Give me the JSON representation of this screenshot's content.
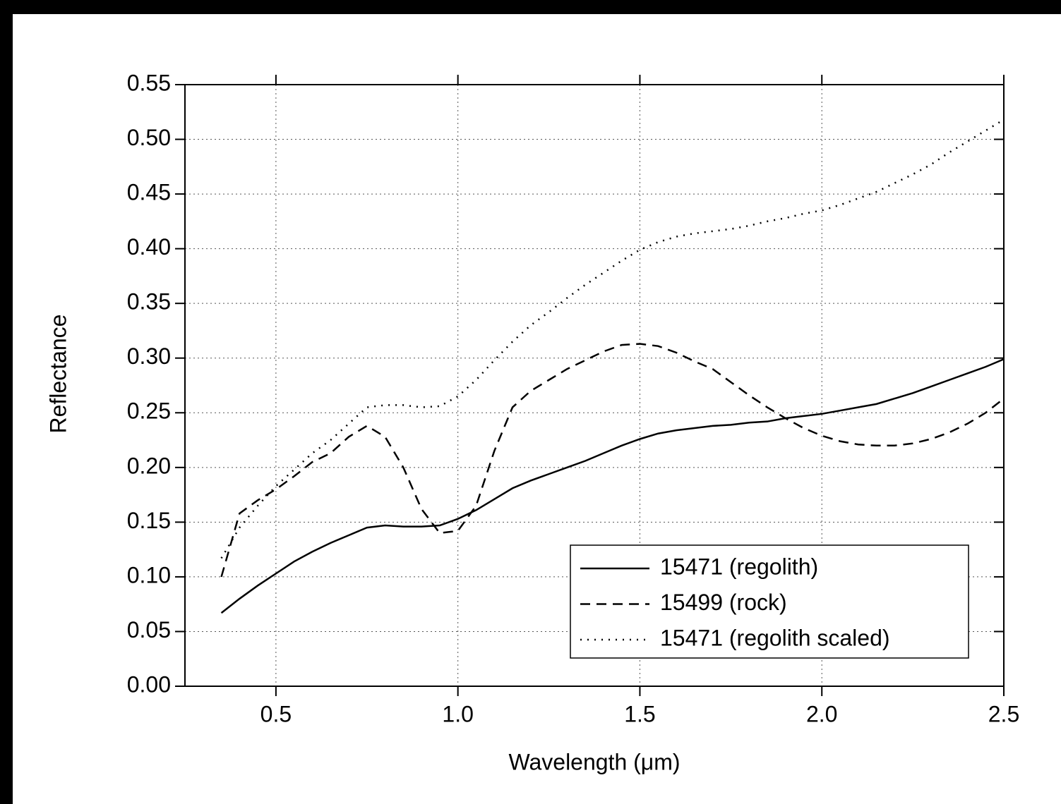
{
  "chart_data": {
    "type": "line",
    "xlabel": "Wavelength (μm)",
    "ylabel": "Reflectance",
    "x": [
      0.35,
      0.4,
      0.45,
      0.5,
      0.55,
      0.6,
      0.65,
      0.7,
      0.75,
      0.8,
      0.85,
      0.9,
      0.95,
      1.0,
      1.05,
      1.1,
      1.15,
      1.2,
      1.25,
      1.3,
      1.35,
      1.4,
      1.45,
      1.5,
      1.55,
      1.6,
      1.65,
      1.7,
      1.75,
      1.8,
      1.85,
      1.9,
      1.95,
      2.0,
      2.05,
      2.1,
      2.15,
      2.2,
      2.25,
      2.3,
      2.35,
      2.4,
      2.45,
      2.5
    ],
    "series": [
      {
        "name": "15471 (regolith)",
        "color": "#000000",
        "style": "solid",
        "values": [
          0.067,
          0.08,
          0.092,
          0.103,
          0.114,
          0.123,
          0.131,
          0.138,
          0.145,
          0.147,
          0.146,
          0.146,
          0.147,
          0.153,
          0.161,
          0.171,
          0.181,
          0.188,
          0.194,
          0.2,
          0.206,
          0.213,
          0.22,
          0.226,
          0.231,
          0.234,
          0.236,
          0.238,
          0.239,
          0.241,
          0.242,
          0.245,
          0.247,
          0.249,
          0.252,
          0.255,
          0.258,
          0.263,
          0.268,
          0.274,
          0.28,
          0.286,
          0.292,
          0.299
        ]
      },
      {
        "name": "15499 (rock)",
        "color": "#000000",
        "style": "dashed",
        "values": [
          0.1,
          0.158,
          0.17,
          0.18,
          0.192,
          0.205,
          0.213,
          0.228,
          0.238,
          0.228,
          0.2,
          0.162,
          0.14,
          0.142,
          0.165,
          0.215,
          0.255,
          0.27,
          0.28,
          0.29,
          0.298,
          0.306,
          0.312,
          0.313,
          0.311,
          0.305,
          0.297,
          0.29,
          0.278,
          0.266,
          0.255,
          0.245,
          0.236,
          0.229,
          0.224,
          0.221,
          0.22,
          0.22,
          0.222,
          0.226,
          0.232,
          0.24,
          0.25,
          0.263
        ]
      },
      {
        "name": "15471 (regolith scaled)",
        "color": "#000000",
        "style": "dotted",
        "values": [
          0.117,
          0.145,
          0.165,
          0.183,
          0.198,
          0.213,
          0.225,
          0.24,
          0.255,
          0.257,
          0.257,
          0.255,
          0.256,
          0.265,
          0.28,
          0.298,
          0.315,
          0.33,
          0.342,
          0.355,
          0.367,
          0.378,
          0.389,
          0.399,
          0.406,
          0.411,
          0.414,
          0.416,
          0.418,
          0.421,
          0.425,
          0.428,
          0.432,
          0.435,
          0.44,
          0.446,
          0.452,
          0.46,
          0.468,
          0.477,
          0.488,
          0.498,
          0.508,
          0.518
        ]
      }
    ],
    "xlim": [
      0.25,
      2.5
    ],
    "xticks": [
      0.5,
      {
        "value": 1,
        "label": "1.0"
      },
      1.5,
      {
        "value": 2,
        "label": "2.0"
      },
      2.5
    ],
    "ylim": [
      0,
      0.55
    ],
    "yticks": [
      {
        "value": 0,
        "label": "0.00"
      },
      0.05,
      {
        "value": 0.1,
        "label": "0.10"
      },
      0.15,
      {
        "value": 0.2,
        "label": "0.20"
      },
      0.25,
      {
        "value": 0.3,
        "label": "0.30"
      },
      0.35,
      {
        "value": 0.4,
        "label": "0.40"
      },
      0.45,
      {
        "value": 0.5,
        "label": "0.50"
      },
      0.55
    ],
    "grid": true,
    "legend": "lower right"
  }
}
